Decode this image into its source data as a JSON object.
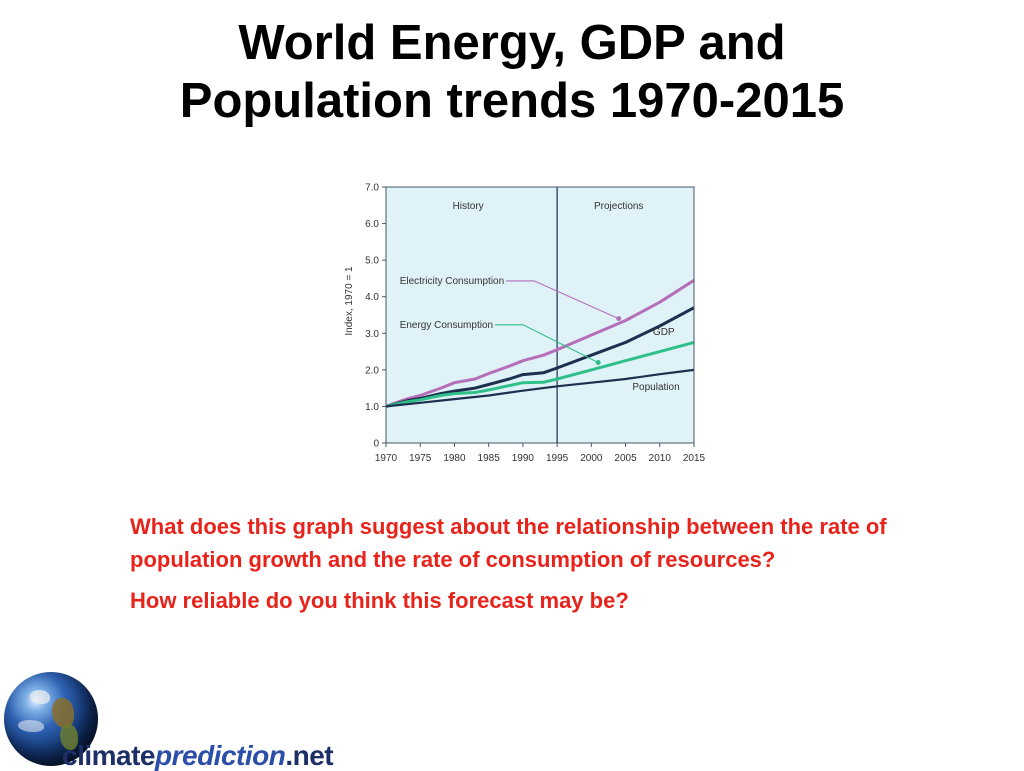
{
  "title": {
    "line1": "World Energy, GDP and",
    "line2": "Population trends 1970-2015"
  },
  "chart_data": {
    "type": "line",
    "ylabel": "Index, 1970 = 1",
    "x": [
      1970,
      1975,
      1980,
      1985,
      1990,
      1995,
      2000,
      2005,
      2010,
      2015
    ],
    "xlim": [
      1970,
      2015
    ],
    "ylim": [
      0,
      7
    ],
    "y_ticks": [
      "0",
      "1.0",
      "2.0",
      "3.0",
      "4.0",
      "5.0",
      "6.0",
      "7.0"
    ],
    "x_ticks": [
      "1970",
      "1975",
      "1980",
      "1985",
      "1990",
      "1995",
      "2000",
      "2005",
      "2010",
      "2015"
    ],
    "divider_x": 1995,
    "regions": [
      {
        "label": "History",
        "center_x": 1982
      },
      {
        "label": "Projections",
        "center_x": 2004
      }
    ],
    "series": [
      {
        "name": "Electricity Consumption",
        "color": "#b56fb8",
        "points": [
          [
            1970,
            1.0
          ],
          [
            1973,
            1.2
          ],
          [
            1975,
            1.3
          ],
          [
            1978,
            1.5
          ],
          [
            1980,
            1.65
          ],
          [
            1983,
            1.75
          ],
          [
            1985,
            1.9
          ],
          [
            1988,
            2.1
          ],
          [
            1990,
            2.25
          ],
          [
            1993,
            2.4
          ],
          [
            1995,
            2.55
          ],
          [
            2000,
            2.95
          ],
          [
            2005,
            3.35
          ],
          [
            2010,
            3.85
          ],
          [
            2015,
            4.45
          ]
        ]
      },
      {
        "name": "GDP",
        "color": "#1d2f4f",
        "points": [
          [
            1970,
            1.0
          ],
          [
            1973,
            1.15
          ],
          [
            1975,
            1.22
          ],
          [
            1978,
            1.35
          ],
          [
            1980,
            1.42
          ],
          [
            1983,
            1.5
          ],
          [
            1985,
            1.6
          ],
          [
            1988,
            1.75
          ],
          [
            1990,
            1.87
          ],
          [
            1993,
            1.92
          ],
          [
            1995,
            2.05
          ],
          [
            2000,
            2.4
          ],
          [
            2005,
            2.75
          ],
          [
            2010,
            3.2
          ],
          [
            2015,
            3.7
          ]
        ]
      },
      {
        "name": "Energy Consumption",
        "color": "#2fc08a",
        "points": [
          [
            1970,
            1.0
          ],
          [
            1973,
            1.12
          ],
          [
            1975,
            1.18
          ],
          [
            1978,
            1.3
          ],
          [
            1980,
            1.35
          ],
          [
            1983,
            1.38
          ],
          [
            1985,
            1.45
          ],
          [
            1988,
            1.57
          ],
          [
            1990,
            1.65
          ],
          [
            1993,
            1.66
          ],
          [
            1995,
            1.75
          ],
          [
            2000,
            2.0
          ],
          [
            2005,
            2.25
          ],
          [
            2010,
            2.5
          ],
          [
            2015,
            2.75
          ]
        ]
      },
      {
        "name": "Population",
        "color": "#1d2f4f",
        "points": [
          [
            1970,
            1.0
          ],
          [
            1975,
            1.1
          ],
          [
            1980,
            1.2
          ],
          [
            1985,
            1.3
          ],
          [
            1990,
            1.43
          ],
          [
            1995,
            1.55
          ],
          [
            2000,
            1.65
          ],
          [
            2005,
            1.75
          ],
          [
            2010,
            1.88
          ],
          [
            2015,
            2.0
          ]
        ]
      }
    ],
    "annotations": [
      {
        "text": "Electricity Consumption",
        "series": "Electricity Consumption",
        "label_x": 1972,
        "label_y": 4.35,
        "target_x": 2004,
        "target_y": 3.4
      },
      {
        "text": "Energy Consumption",
        "series": "Energy Consumption",
        "label_x": 1972,
        "label_y": 3.15,
        "target_x": 2001,
        "target_y": 2.2
      },
      {
        "text": "GDP",
        "series": "GDP",
        "label_x": 2009,
        "label_y": 2.95
      },
      {
        "text": "Population",
        "series": "Population",
        "label_x": 2006,
        "label_y": 1.45
      }
    ],
    "background_color": "#dff2f7",
    "grid": false,
    "legend": "none"
  },
  "questions": {
    "q1": "What does this graph suggest about the relationship between the rate of population growth and the rate of consumption of resources?",
    "q2": "How reliable do you think this forecast may be?"
  },
  "logo": {
    "climate": "climate",
    "prediction": "prediction",
    "net": ".net"
  },
  "icons": {
    "globe": "earth-globe-icon"
  }
}
